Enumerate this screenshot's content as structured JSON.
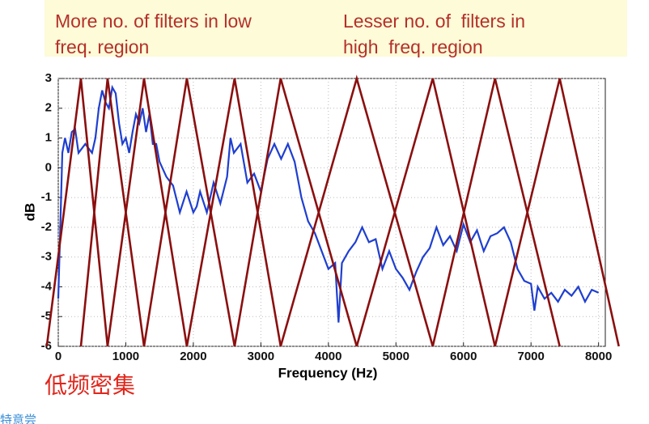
{
  "chart_data": {
    "type": "line",
    "annotations": [
      "More no. of filters in low",
      "freq. region",
      "Lesser no. of  filters in",
      "high  freq. region",
      "低频密集",
      "特意尝"
    ],
    "xlabel": "Frequency (Hz)",
    "ylabel": "dB",
    "xlim": [
      0,
      8100
    ],
    "ylim": [
      -6,
      3
    ],
    "xticks": [
      0,
      1000,
      2000,
      3000,
      4000,
      5000,
      6000,
      7000,
      8000
    ],
    "yticks": [
      -6,
      -5,
      -4,
      -3,
      -2,
      -1,
      0,
      1,
      2,
      3
    ],
    "grid": true,
    "filter_color": "#8b0f0f",
    "filter_edges": [
      -170,
      335,
      730,
      1270,
      1904,
      2611,
      3293,
      4419,
      5545,
      6467,
      7425,
      8300
    ],
    "series": [
      {
        "color": "#1f3fd0",
        "x": [
          0,
          30,
          60,
          100,
          150,
          200,
          250,
          300,
          400,
          500,
          550,
          600,
          650,
          700,
          750,
          800,
          850,
          900,
          950,
          1000,
          1050,
          1100,
          1150,
          1200,
          1250,
          1300,
          1350,
          1400,
          1450,
          1500,
          1600,
          1700,
          1800,
          1900,
          2000,
          2050,
          2100,
          2200,
          2300,
          2400,
          2500,
          2550,
          2600,
          2700,
          2800,
          2900,
          3000,
          3100,
          3200,
          3300,
          3400,
          3500,
          3600,
          3700,
          3800,
          3900,
          4000,
          4100,
          4150,
          4200,
          4300,
          4400,
          4500,
          4600,
          4700,
          4800,
          4900,
          5000,
          5100,
          5200,
          5300,
          5400,
          5500,
          5600,
          5700,
          5800,
          5900,
          6000,
          6100,
          6200,
          6300,
          6400,
          6500,
          6600,
          6700,
          6800,
          6900,
          7000,
          7050,
          7100,
          7200,
          7300,
          7400,
          7500,
          7600,
          7700,
          7800,
          7900,
          8000
        ],
        "values": [
          -4.4,
          -2,
          0.5,
          1.0,
          0.5,
          1.2,
          1.3,
          0.5,
          0.8,
          0.5,
          1.0,
          2.0,
          2.6,
          2.2,
          2.0,
          2.7,
          2.5,
          1.5,
          0.8,
          1.0,
          0.5,
          1.2,
          1.8,
          1.5,
          2.0,
          1.2,
          1.8,
          0.8,
          0.8,
          0.2,
          -0.3,
          -0.6,
          -1.5,
          -0.8,
          -1.5,
          -1.3,
          -0.8,
          -1.5,
          -0.5,
          -1.2,
          -0.3,
          1.0,
          0.5,
          0.8,
          -0.5,
          -0.2,
          -0.8,
          0.3,
          0.8,
          0.3,
          0.8,
          0.2,
          -1.0,
          -1.8,
          -2.2,
          -2.8,
          -3.4,
          -3.2,
          -5.2,
          -3.2,
          -2.8,
          -2.5,
          -2.0,
          -2.5,
          -2.4,
          -3.4,
          -2.8,
          -3.4,
          -3.7,
          -4.1,
          -3.5,
          -3.0,
          -2.7,
          -2.0,
          -2.6,
          -2.3,
          -2.8,
          -1.9,
          -2.5,
          -2.1,
          -2.8,
          -2.3,
          -2.2,
          -2.0,
          -2.5,
          -3.4,
          -3.8,
          -3.9,
          -4.8,
          -4.0,
          -4.4,
          -4.2,
          -4.5,
          -4.1,
          -4.3,
          -4.0,
          -4.5,
          -4.1,
          -4.2
        ]
      }
    ]
  }
}
